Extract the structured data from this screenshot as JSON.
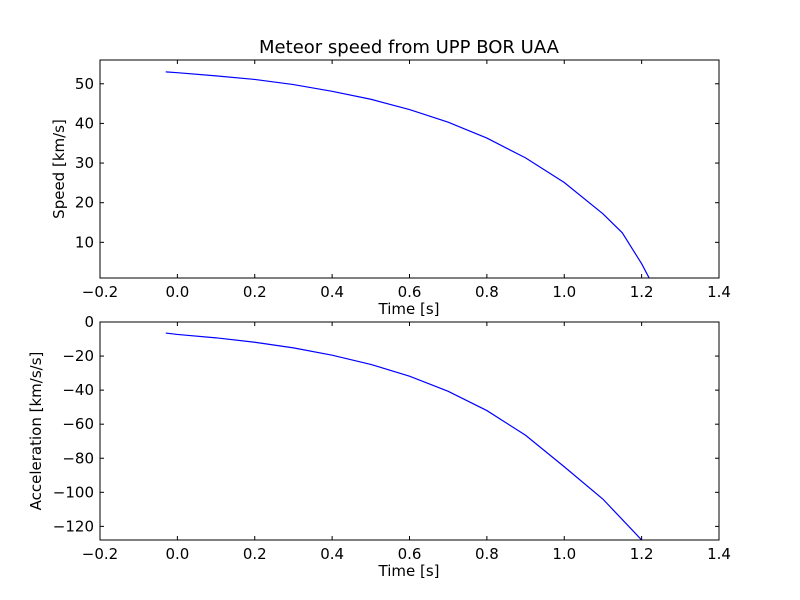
{
  "colors": {
    "line": "#0000ff",
    "axes": "#000000",
    "background": "#ffffff"
  },
  "chart_data": [
    {
      "type": "line",
      "title": "Meteor speed from  UPP BOR UAA",
      "xlabel": "Time [s]",
      "ylabel": "Speed [km/s]",
      "xlim": [
        -0.2,
        1.4
      ],
      "ylim": [
        1,
        56
      ],
      "xticks": [
        -0.2,
        0.0,
        0.2,
        0.4,
        0.6,
        0.8,
        1.0,
        1.2,
        1.4
      ],
      "xtick_labels": [
        "−0.2",
        "0.0",
        "0.2",
        "0.4",
        "0.6",
        "0.8",
        "1.0",
        "1.2",
        "1.4"
      ],
      "yticks": [
        10,
        20,
        30,
        40,
        50
      ],
      "ytick_labels": [
        "10",
        "20",
        "30",
        "40",
        "50"
      ],
      "grid": false,
      "series": [
        {
          "x": [
            -0.03,
            0.0,
            0.1,
            0.2,
            0.3,
            0.4,
            0.5,
            0.6,
            0.7,
            0.8,
            0.9,
            1.0,
            1.1,
            1.15,
            1.2,
            1.22
          ],
          "y": [
            53.0,
            52.8,
            52.0,
            51.1,
            49.8,
            48.1,
            46.1,
            43.5,
            40.3,
            36.3,
            31.3,
            25.1,
            17.2,
            12.4,
            4.6,
            0.9
          ]
        }
      ]
    },
    {
      "type": "line",
      "title": "",
      "xlabel": "Time [s]",
      "ylabel": "Acceleration [km/s/s]",
      "xlim": [
        -0.2,
        1.4
      ],
      "ylim": [
        -128,
        0
      ],
      "xticks": [
        -0.2,
        0.0,
        0.2,
        0.4,
        0.6,
        0.8,
        1.0,
        1.2,
        1.4
      ],
      "xtick_labels": [
        "−0.2",
        "0.0",
        "0.2",
        "0.4",
        "0.6",
        "0.8",
        "1.0",
        "1.2",
        "1.4"
      ],
      "yticks": [
        0,
        -20,
        -40,
        -60,
        -80,
        -100,
        -120
      ],
      "ytick_labels": [
        "0",
        "−20",
        "−40",
        "−60",
        "−80",
        "−100",
        "−120"
      ],
      "grid": false,
      "series": [
        {
          "x": [
            -0.03,
            0.0,
            0.1,
            0.2,
            0.3,
            0.4,
            0.5,
            0.6,
            0.7,
            0.8,
            0.9,
            1.0,
            1.1,
            1.2
          ],
          "y": [
            -6.5,
            -7.3,
            -9.3,
            -11.9,
            -15.2,
            -19.5,
            -24.9,
            -31.8,
            -40.7,
            -52.0,
            -66.5,
            -85.0,
            -104.0,
            -128.0
          ]
        }
      ]
    }
  ]
}
